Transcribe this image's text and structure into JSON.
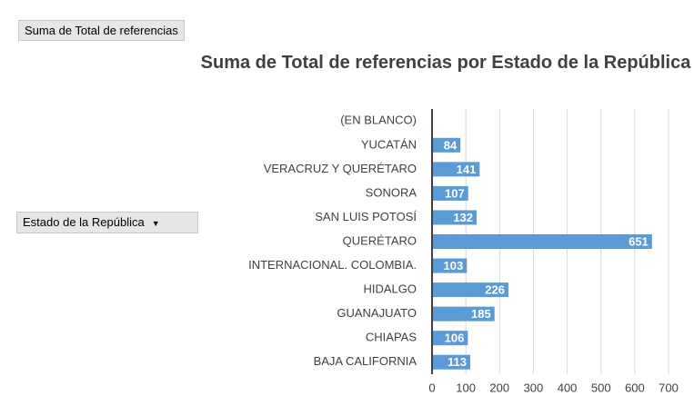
{
  "chart_data": {
    "type": "bar",
    "orientation": "horizontal",
    "title": "Suma de Total de referencias por Estado de la República",
    "value_field": "Suma de Total de referencias",
    "category_field": "Estado de la República",
    "categories": [
      "(EN BLANCO)",
      "YUCATÁN",
      "VERACRUZ Y QUERÉTARO",
      "SONORA",
      "SAN LUIS POTOSÍ",
      "QUERÉTARO",
      "INTERNACIONAL. COLOMBIA.",
      "HIDALGO",
      "GUANAJUATO",
      "CHIAPAS",
      "BAJA CALIFORNIA"
    ],
    "values": [
      null,
      84,
      141,
      107,
      132,
      651,
      103,
      226,
      185,
      106,
      113
    ],
    "color": "#5b9bd5",
    "xlim": [
      0,
      700
    ],
    "xticks": [
      0,
      100,
      200,
      300,
      400,
      500,
      600,
      700
    ],
    "grid": true
  }
}
